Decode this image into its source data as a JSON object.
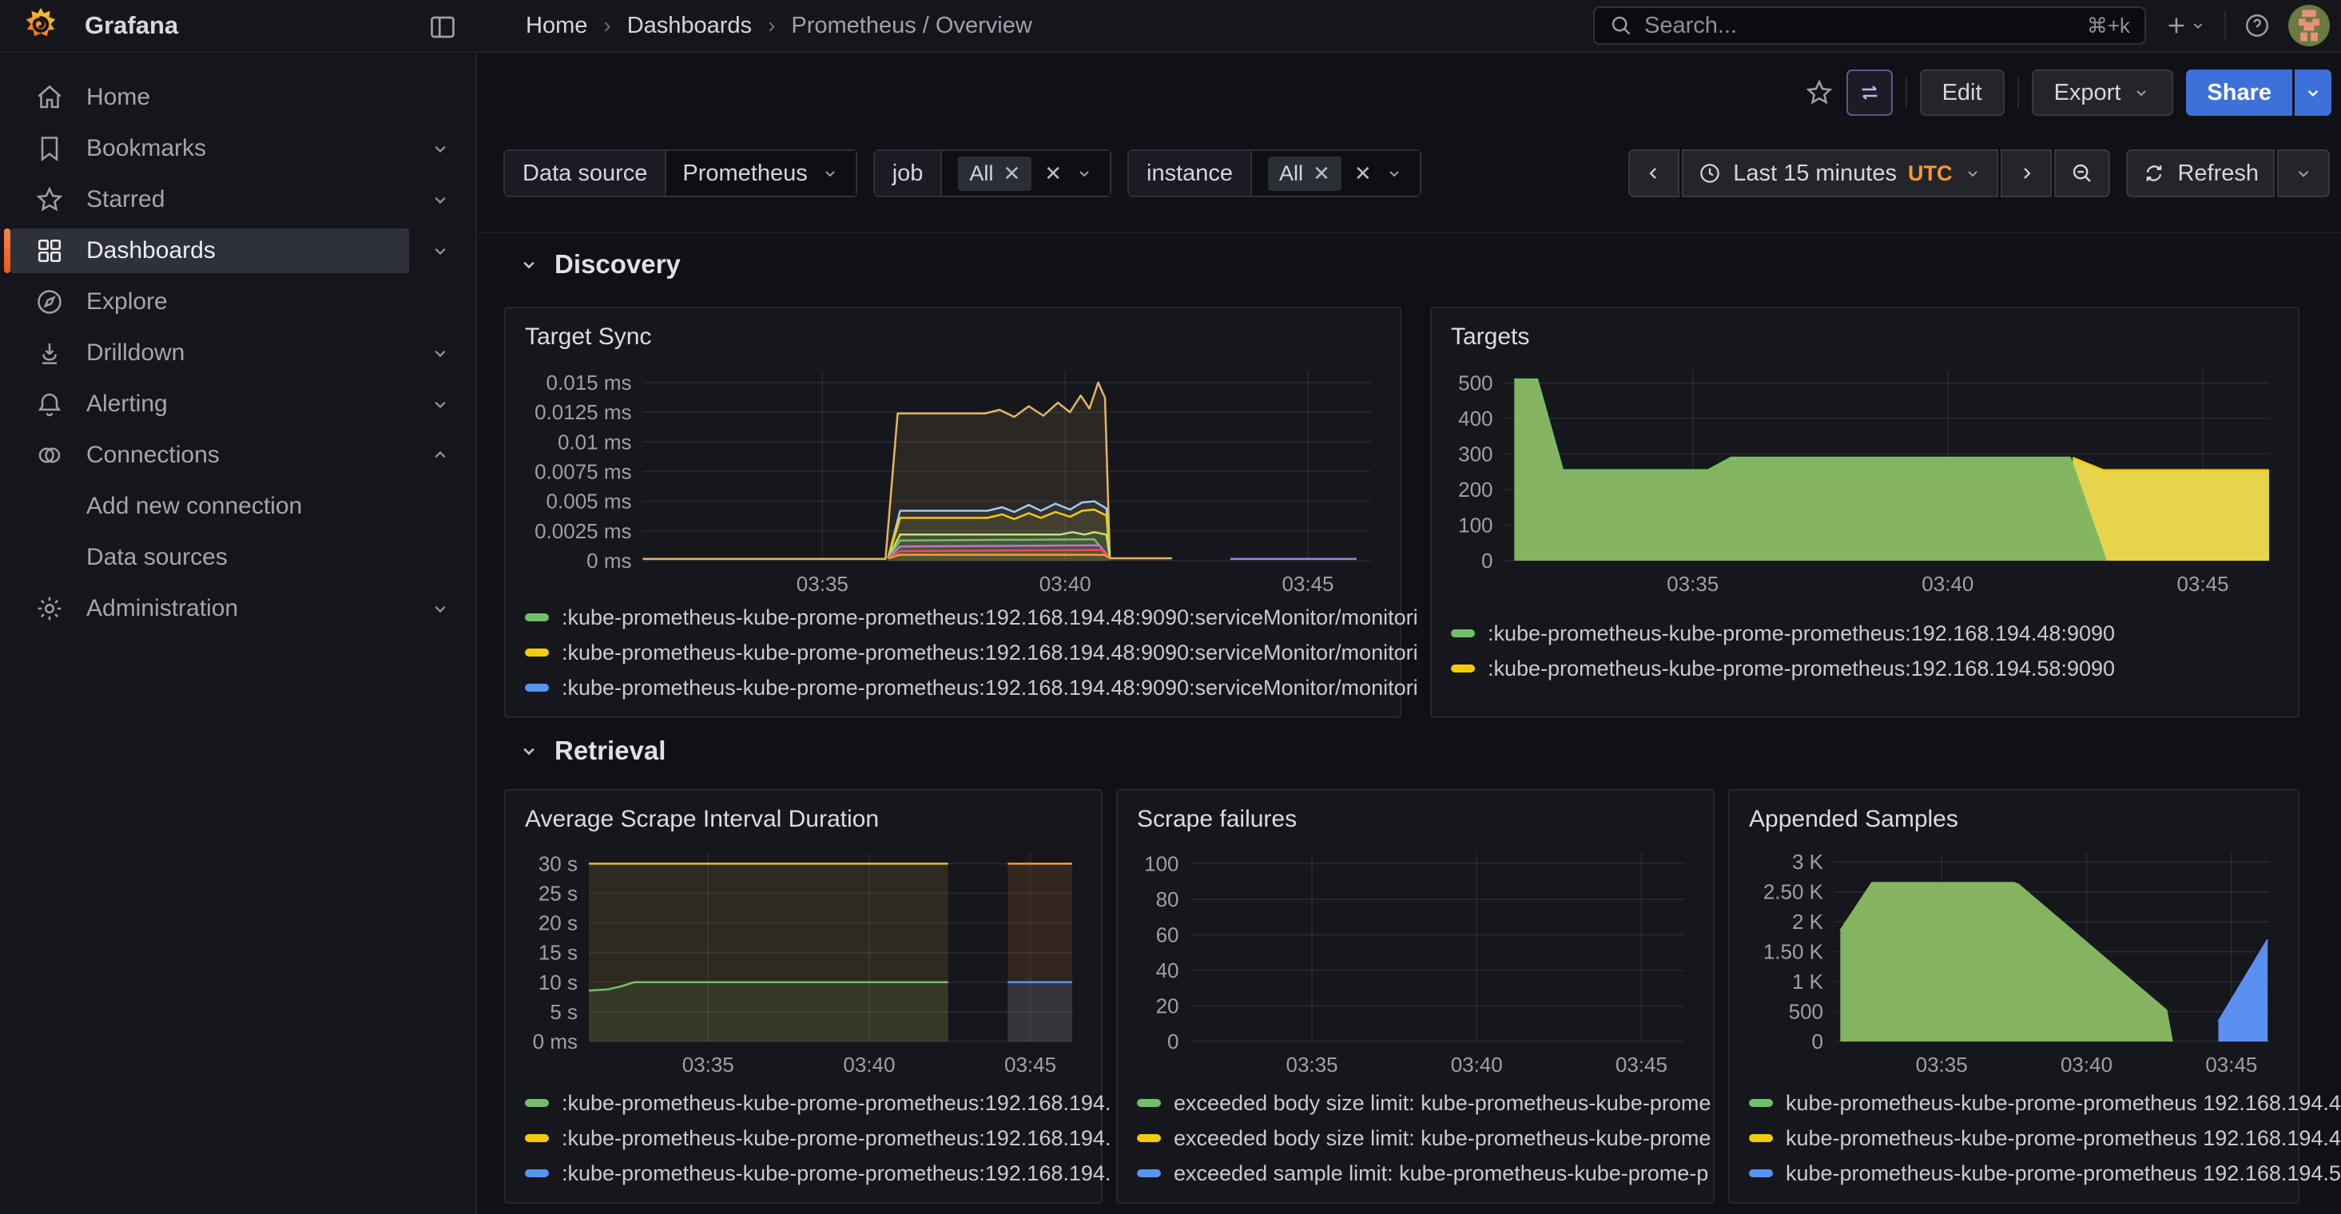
{
  "header": {
    "app_name": "Grafana",
    "breadcrumb": [
      "Home",
      "Dashboards",
      "Prometheus / Overview"
    ],
    "search": {
      "placeholder": "Search...",
      "shortcut": "⌘+k"
    }
  },
  "toolbar": {
    "edit_label": "Edit",
    "export_label": "Export",
    "share_label": "Share"
  },
  "filters": {
    "datasource": {
      "label": "Data source",
      "value": "Prometheus"
    },
    "job": {
      "label": "job",
      "value": "All"
    },
    "instance": {
      "label": "instance",
      "value": "All"
    }
  },
  "timebar": {
    "range_label": "Last 15 minutes",
    "timezone": "UTC",
    "refresh_label": "Refresh"
  },
  "sidebar": {
    "items": [
      {
        "label": "Home"
      },
      {
        "label": "Bookmarks"
      },
      {
        "label": "Starred"
      },
      {
        "label": "Dashboards",
        "active": true
      },
      {
        "label": "Explore"
      },
      {
        "label": "Drilldown"
      },
      {
        "label": "Alerting"
      },
      {
        "label": "Connections"
      },
      {
        "label": "Add new connection",
        "indent": true
      },
      {
        "label": "Data sources",
        "indent": true
      },
      {
        "label": "Administration"
      }
    ]
  },
  "sections": [
    {
      "title": "Discovery"
    },
    {
      "title": "Retrieval"
    }
  ],
  "colors": {
    "green": "#73BF69",
    "yellow": "#F2CC0C",
    "blue": "#5794F2",
    "orange": "#FF9830",
    "accent_orange": "#FF8833",
    "share_blue": "#3D71D9"
  },
  "chart_data": [
    {
      "id": "target_sync",
      "type": "line",
      "title": "Target Sync",
      "xlim": [
        31.3,
        46.3
      ],
      "ylim": [
        0,
        0.016
      ],
      "xticks": [
        {
          "v": 35,
          "label": "03:35"
        },
        {
          "v": 40,
          "label": "03:40"
        },
        {
          "v": 45,
          "label": "03:45"
        }
      ],
      "yticks": [
        {
          "v": 0.015,
          "label": "0.015 ms"
        },
        {
          "v": 0.0125,
          "label": "0.0125 ms"
        },
        {
          "v": 0.01,
          "label": "0.01 ms"
        },
        {
          "v": 0.0075,
          "label": "0.0075 ms"
        },
        {
          "v": 0.005,
          "label": "0.005 ms"
        },
        {
          "v": 0.0025,
          "label": "0.0025 ms"
        },
        {
          "v": 0,
          "label": "0 ms"
        }
      ],
      "series": [
        {
          "color": "#E2B660",
          "fill": "rgba(226,182,96,0.10)",
          "points": [
            [
              31.3,
              0.00015
            ],
            [
              36.3,
              0.00015
            ],
            [
              36.55,
              0.0124
            ],
            [
              38.35,
              0.0124
            ],
            [
              38.65,
              0.0127
            ],
            [
              38.95,
              0.0121
            ],
            [
              39.25,
              0.013
            ],
            [
              39.55,
              0.0122
            ],
            [
              39.85,
              0.0133
            ],
            [
              40.1,
              0.0125
            ],
            [
              40.32,
              0.0139
            ],
            [
              40.5,
              0.0128
            ],
            [
              40.68,
              0.015
            ],
            [
              40.82,
              0.0137
            ],
            [
              40.92,
              0.0002
            ],
            [
              42.2,
              0.0002
            ]
          ]
        },
        {
          "color": "#A5C8F5",
          "fill": "rgba(165,200,245,0.08)",
          "points": [
            [
              36.35,
              0.0002
            ],
            [
              36.6,
              0.0042
            ],
            [
              38.4,
              0.0042
            ],
            [
              38.7,
              0.0045
            ],
            [
              38.95,
              0.0041
            ],
            [
              39.25,
              0.0047
            ],
            [
              39.5,
              0.0042
            ],
            [
              39.8,
              0.0048
            ],
            [
              40.1,
              0.0043
            ],
            [
              40.35,
              0.0049
            ],
            [
              40.6,
              0.005
            ],
            [
              40.85,
              0.0044
            ],
            [
              40.92,
              0.0002
            ]
          ]
        },
        {
          "color": "#F2CC0C",
          "fill": "rgba(242,204,12,0.08)",
          "points": [
            [
              36.35,
              0.0002
            ],
            [
              36.6,
              0.0036
            ],
            [
              38.4,
              0.0036
            ],
            [
              38.7,
              0.0039
            ],
            [
              38.95,
              0.0035
            ],
            [
              39.25,
              0.004
            ],
            [
              39.5,
              0.0036
            ],
            [
              39.8,
              0.0041
            ],
            [
              40.1,
              0.0037
            ],
            [
              40.35,
              0.0042
            ],
            [
              40.6,
              0.0043
            ],
            [
              40.85,
              0.0038
            ],
            [
              40.92,
              0.0002
            ]
          ]
        },
        {
          "color": "#B7E878",
          "fill": "rgba(183,232,120,0.08)",
          "points": [
            [
              36.35,
              0.0002
            ],
            [
              36.6,
              0.0022
            ],
            [
              39.9,
              0.0022
            ],
            [
              40.15,
              0.0024
            ],
            [
              40.4,
              0.0022
            ],
            [
              40.6,
              0.0024
            ],
            [
              40.85,
              0.0022
            ],
            [
              40.92,
              0.0002
            ]
          ]
        },
        {
          "color": "#73BF69",
          "fill": "rgba(115,191,105,0.08)",
          "points": [
            [
              36.35,
              0.0002
            ],
            [
              36.6,
              0.0017
            ],
            [
              40.6,
              0.0018
            ],
            [
              40.92,
              0.0002
            ]
          ]
        },
        {
          "color": "#B877D9",
          "points": [
            [
              36.35,
              0.0002
            ],
            [
              36.6,
              0.0012
            ],
            [
              40.7,
              0.0013
            ],
            [
              40.92,
              0.0002
            ]
          ]
        },
        {
          "color": "#F2495C",
          "points": [
            [
              36.35,
              0.0002
            ],
            [
              36.6,
              0.0008
            ],
            [
              40.75,
              0.0009
            ],
            [
              40.92,
              0.0002
            ]
          ]
        },
        {
          "color": "#FF9830",
          "points": [
            [
              36.35,
              0.0002
            ],
            [
              36.6,
              0.0005
            ],
            [
              40.8,
              0.0005
            ],
            [
              40.92,
              0.0002
            ]
          ]
        },
        {
          "color": "#8E85E8",
          "points": [
            [
              43.4,
              0.00015
            ],
            [
              46.0,
              0.00015
            ]
          ]
        }
      ],
      "legend": [
        {
          "color": "#73BF69",
          "label": ":kube-prometheus-kube-prome-prometheus:192.168.194.48:9090:serviceMonitor/monitori"
        },
        {
          "color": "#F2CC0C",
          "label": ":kube-prometheus-kube-prome-prometheus:192.168.194.48:9090:serviceMonitor/monitori"
        },
        {
          "color": "#5794F2",
          "label": ":kube-prometheus-kube-prome-prometheus:192.168.194.48:9090:serviceMonitor/monitori"
        }
      ]
    },
    {
      "id": "targets",
      "type": "area",
      "title": "Targets",
      "xlim": [
        31.3,
        46.3
      ],
      "ylim": [
        0,
        535
      ],
      "xticks": [
        {
          "v": 35,
          "label": "03:35"
        },
        {
          "v": 40,
          "label": "03:40"
        },
        {
          "v": 45,
          "label": "03:45"
        }
      ],
      "yticks": [
        {
          "v": 500,
          "label": "500"
        },
        {
          "v": 400,
          "label": "400"
        },
        {
          "v": 300,
          "label": "300"
        },
        {
          "v": 200,
          "label": "200"
        },
        {
          "v": 100,
          "label": "100"
        },
        {
          "v": 0,
          "label": "0"
        }
      ],
      "series": [
        {
          "color": "#F2CC0C",
          "fill": "#E8D44B",
          "points": [
            [
              42.45,
              290
            ],
            [
              43.05,
              255
            ],
            [
              46.3,
              255
            ]
          ]
        },
        {
          "color": "#73BF69",
          "fill": "#84B45F",
          "points": [
            [
              31.5,
              510
            ],
            [
              31.95,
              510
            ],
            [
              32.45,
              255
            ],
            [
              35.3,
              255
            ],
            [
              35.75,
              290
            ],
            [
              42.4,
              290
            ],
            [
              43.1,
              0
            ]
          ]
        }
      ],
      "legend": [
        {
          "color": "#73BF69",
          "label": ":kube-prometheus-kube-prome-prometheus:192.168.194.48:9090"
        },
        {
          "color": "#F2CC0C",
          "label": ":kube-prometheus-kube-prome-prometheus:192.168.194.58:9090"
        }
      ]
    },
    {
      "id": "avg_scrape",
      "type": "line",
      "title": "Average Scrape Interval Duration",
      "xlim": [
        31.3,
        46.3
      ],
      "ylim": [
        0,
        31.8
      ],
      "xticks": [
        {
          "v": 35,
          "label": "03:35"
        },
        {
          "v": 40,
          "label": "03:40"
        },
        {
          "v": 45,
          "label": "03:45"
        }
      ],
      "yticks": [
        {
          "v": 30,
          "label": "30 s"
        },
        {
          "v": 25,
          "label": "25 s"
        },
        {
          "v": 20,
          "label": "20 s"
        },
        {
          "v": 15,
          "label": "15 s"
        },
        {
          "v": 10,
          "label": "10 s"
        },
        {
          "v": 5,
          "label": "5 s"
        },
        {
          "v": 0,
          "label": "0 ms"
        }
      ],
      "series": [
        {
          "color": "#EAB839",
          "fill": "rgba(234,184,57,0.12)",
          "points": [
            [
              31.3,
              30
            ],
            [
              42.45,
              30
            ]
          ]
        },
        {
          "color": "#73BF69",
          "fill": "rgba(115,191,105,0.10)",
          "points": [
            [
              31.3,
              8.6
            ],
            [
              31.9,
              8.8
            ],
            [
              32.3,
              9.3
            ],
            [
              32.7,
              10
            ],
            [
              42.45,
              10
            ]
          ]
        },
        {
          "color": "#FF9830",
          "fill": "rgba(255,152,48,0.12)",
          "points": [
            [
              44.3,
              30
            ],
            [
              46.3,
              30
            ]
          ]
        },
        {
          "color": "#5794F2",
          "fill": "rgba(87,148,242,0.14)",
          "points": [
            [
              44.3,
              10
            ],
            [
              46.3,
              10
            ]
          ]
        }
      ],
      "legend": [
        {
          "color": "#73BF69",
          "label": ":kube-prometheus-kube-prome-prometheus:192.168.194."
        },
        {
          "color": "#F2CC0C",
          "label": ":kube-prometheus-kube-prome-prometheus:192.168.194."
        },
        {
          "color": "#5794F2",
          "label": ":kube-prometheus-kube-prome-prometheus:192.168.194."
        }
      ]
    },
    {
      "id": "scrape_failures",
      "type": "line",
      "title": "Scrape failures",
      "xlim": [
        31.3,
        46.3
      ],
      "ylim": [
        0,
        106
      ],
      "xticks": [
        {
          "v": 35,
          "label": "03:35"
        },
        {
          "v": 40,
          "label": "03:40"
        },
        {
          "v": 45,
          "label": "03:45"
        }
      ],
      "yticks": [
        {
          "v": 100,
          "label": "100"
        },
        {
          "v": 80,
          "label": "80"
        },
        {
          "v": 60,
          "label": "60"
        },
        {
          "v": 40,
          "label": "40"
        },
        {
          "v": 20,
          "label": "20"
        },
        {
          "v": 0,
          "label": "0"
        }
      ],
      "series": [],
      "legend": [
        {
          "color": "#73BF69",
          "label": "exceeded body size limit: kube-prometheus-kube-prome"
        },
        {
          "color": "#F2CC0C",
          "label": "exceeded body size limit: kube-prometheus-kube-prome"
        },
        {
          "color": "#5794F2",
          "label": "exceeded sample limit: kube-prometheus-kube-prome-p"
        }
      ]
    },
    {
      "id": "appended",
      "type": "area",
      "title": "Appended Samples",
      "xlim": [
        31.3,
        46.3
      ],
      "ylim": [
        0,
        3150
      ],
      "xticks": [
        {
          "v": 35,
          "label": "03:35"
        },
        {
          "v": 40,
          "label": "03:40"
        },
        {
          "v": 45,
          "label": "03:45"
        }
      ],
      "yticks": [
        {
          "v": 3000,
          "label": "3 K"
        },
        {
          "v": 2500,
          "label": "2.50 K"
        },
        {
          "v": 2000,
          "label": "2 K"
        },
        {
          "v": 1500,
          "label": "1.50 K"
        },
        {
          "v": 1000,
          "label": "1 K"
        },
        {
          "v": 500,
          "label": "500"
        },
        {
          "v": 0,
          "label": "0"
        }
      ],
      "series": [
        {
          "color": "#84B45F",
          "fill": "#84B45F",
          "points": [
            [
              31.5,
              1850
            ],
            [
              32.6,
              2650
            ],
            [
              37.5,
              2650
            ],
            [
              37.65,
              2620
            ],
            [
              42.75,
              520
            ],
            [
              42.95,
              0
            ]
          ]
        },
        {
          "color": "#5B8FF0",
          "fill": "#5B8FF0",
          "points": [
            [
              44.55,
              330
            ],
            [
              46.25,
              1700
            ]
          ]
        }
      ],
      "legend": [
        {
          "color": "#73BF69",
          "label": "kube-prometheus-kube-prome-prometheus 192.168.194.4"
        },
        {
          "color": "#F2CC0C",
          "label": "kube-prometheus-kube-prome-prometheus 192.168.194.4"
        },
        {
          "color": "#5794F2",
          "label": "kube-prometheus-kube-prome-prometheus 192.168.194.5"
        }
      ]
    }
  ]
}
